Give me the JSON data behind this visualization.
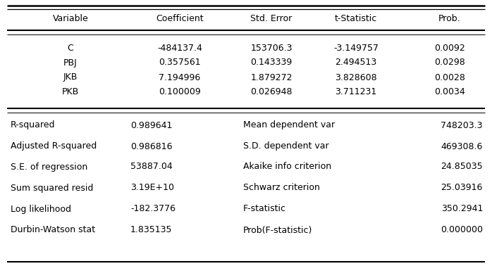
{
  "header": [
    "Variable",
    "Coefficient",
    "Std. Error",
    "t-Statistic",
    "Prob."
  ],
  "main_rows": [
    [
      "C",
      "-484137.4",
      "153706.3",
      "-3.149757",
      "0.0092"
    ],
    [
      "PBJ",
      "0.357561",
      "0.143339",
      "2.494513",
      "0.0298"
    ],
    [
      "JKB",
      "7.194996",
      "1.879272",
      "3.828608",
      "0.0028"
    ],
    [
      "PKB",
      "0.100009",
      "0.026948",
      "3.711231",
      "0.0034"
    ]
  ],
  "stats_rows": [
    [
      "R-squared",
      "0.989641",
      "Mean dependent var",
      "748203.3"
    ],
    [
      "Adjusted R-squared",
      "0.986816",
      "S.D. dependent var",
      "469308.6"
    ],
    [
      "S.E. of regression",
      "53887.04",
      "Akaike info criterion",
      "24.85035"
    ],
    [
      "Sum squared resid",
      "3.19E+10",
      "Schwarz criterion",
      "25.03916"
    ],
    [
      "Log likelihood",
      "-182.3776",
      "F-statistic",
      "350.2941"
    ],
    [
      "Durbin-Watson stat",
      "1.835135",
      "Prob(F-statistic)",
      "0.000000"
    ]
  ],
  "bg_color": "#ffffff",
  "text_color": "#000000",
  "font_size": 9.0
}
